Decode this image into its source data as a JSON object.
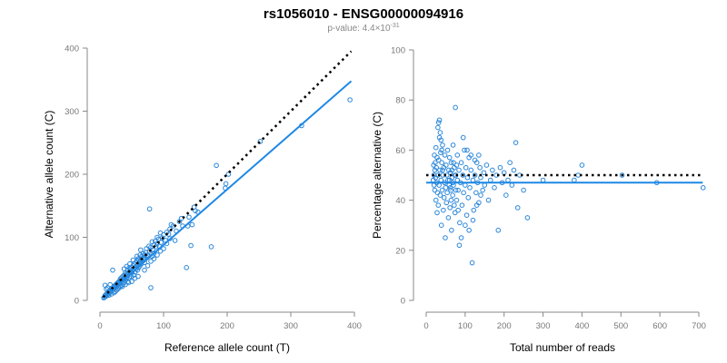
{
  "figure": {
    "title": "rs1056010 - ENSG00000094916",
    "pvalue_prefix": "p-value: 4.4×10",
    "pvalue_exponent": "-31"
  },
  "colors": {
    "points": "#2b87d9",
    "fit": "#1e88e5",
    "reference": "#000000"
  },
  "chart_data": [
    {
      "type": "scatter",
      "xlabel": "Reference allele count (T)",
      "ylabel": "Alternative allele count (C)",
      "xlim": [
        0,
        400
      ],
      "ylim": [
        0,
        400
      ],
      "xticks": [
        0,
        100,
        200,
        300,
        400
      ],
      "yticks": [
        0,
        100,
        200,
        300,
        400
      ],
      "fit_line": {
        "slope": 0.88,
        "intercept": 0,
        "x_range": [
          5,
          395
        ]
      },
      "reference_line": {
        "slope": 1.0,
        "intercept": 0,
        "x_range": [
          5,
          395
        ]
      },
      "points": [
        [
          393,
          318
        ],
        [
          317,
          277
        ],
        [
          252,
          252
        ],
        [
          202,
          200
        ],
        [
          198,
          185
        ],
        [
          197,
          178
        ],
        [
          183,
          214
        ],
        [
          175,
          85
        ],
        [
          154,
          140
        ],
        [
          150,
          142
        ],
        [
          148,
          148
        ],
        [
          145,
          120
        ],
        [
          143,
          87
        ],
        [
          138,
          118
        ],
        [
          136,
          52
        ],
        [
          128,
          130
        ],
        [
          125,
          125
        ],
        [
          118,
          95
        ],
        [
          115,
          118
        ],
        [
          112,
          120
        ],
        [
          110,
          113
        ],
        [
          108,
          105
        ],
        [
          105,
          108
        ],
        [
          103,
          95
        ],
        [
          100,
          104
        ],
        [
          98,
          99
        ],
        [
          96,
          92
        ],
        [
          95,
          107
        ],
        [
          93,
          86
        ],
        [
          92,
          97
        ],
        [
          90,
          100
        ],
        [
          90,
          90
        ],
        [
          88,
          85
        ],
        [
          87,
          94
        ],
        [
          85,
          75
        ],
        [
          85,
          88
        ],
        [
          83,
          80
        ],
        [
          82,
          93
        ],
        [
          82,
          70
        ],
        [
          80,
          84
        ],
        [
          80,
          20
        ],
        [
          78,
          78
        ],
        [
          78,
          145
        ],
        [
          77,
          86
        ],
        [
          76,
          70
        ],
        [
          75,
          72
        ],
        [
          74,
          68
        ],
        [
          73,
          82
        ],
        [
          72,
          76
        ],
        [
          71,
          65
        ],
        [
          70,
          72
        ],
        [
          70,
          60
        ],
        [
          69,
          68
        ],
        [
          68,
          74
        ],
        [
          67,
          62
        ],
        [
          66,
          70
        ],
        [
          65,
          58
        ],
        [
          65,
          66
        ],
        [
          64,
          64
        ],
        [
          63,
          55
        ],
        [
          63,
          72
        ],
        [
          62,
          60
        ],
        [
          61,
          52
        ],
        [
          60,
          66
        ],
        [
          60,
          58
        ],
        [
          59,
          48
        ],
        [
          58,
          62
        ],
        [
          58,
          55
        ],
        [
          57,
          50
        ],
        [
          56,
          60
        ],
        [
          55,
          52
        ],
        [
          55,
          45
        ],
        [
          54,
          58
        ],
        [
          53,
          50
        ],
        [
          53,
          40
        ],
        [
          52,
          55
        ],
        [
          51,
          47
        ],
        [
          50,
          52
        ],
        [
          50,
          44
        ],
        [
          49,
          38
        ],
        [
          48,
          50
        ],
        [
          48,
          42
        ],
        [
          47,
          46
        ],
        [
          46,
          36
        ],
        [
          46,
          52
        ],
        [
          45,
          44
        ],
        [
          44,
          40
        ],
        [
          44,
          30
        ],
        [
          43,
          47
        ],
        [
          42,
          42
        ],
        [
          42,
          35
        ],
        [
          41,
          38
        ],
        [
          40,
          44
        ],
        [
          40,
          32
        ],
        [
          39,
          36
        ],
        [
          38,
          40
        ],
        [
          38,
          28
        ],
        [
          37,
          34
        ],
        [
          36,
          38
        ],
        [
          36,
          26
        ],
        [
          35,
          32
        ],
        [
          34,
          36
        ],
        [
          34,
          24
        ],
        [
          33,
          30
        ],
        [
          32,
          34
        ],
        [
          32,
          22
        ],
        [
          31,
          28
        ],
        [
          30,
          30
        ],
        [
          30,
          20
        ],
        [
          29,
          26
        ],
        [
          28,
          28
        ],
        [
          28,
          18
        ],
        [
          27,
          24
        ],
        [
          26,
          26
        ],
        [
          26,
          16
        ],
        [
          25,
          22
        ],
        [
          24,
          24
        ],
        [
          24,
          14
        ],
        [
          23,
          20
        ],
        [
          22,
          22
        ],
        [
          22,
          12
        ],
        [
          21,
          18
        ],
        [
          20,
          20
        ],
        [
          20,
          48
        ],
        [
          19,
          16
        ],
        [
          18,
          18
        ],
        [
          18,
          10
        ],
        [
          17,
          14
        ],
        [
          16,
          16
        ],
        [
          16,
          25
        ],
        [
          15,
          12
        ],
        [
          14,
          14
        ],
        [
          14,
          8
        ],
        [
          13,
          10
        ],
        [
          12,
          12
        ],
        [
          12,
          20
        ],
        [
          11,
          8
        ],
        [
          10,
          10
        ],
        [
          10,
          18
        ],
        [
          9,
          6
        ],
        [
          8,
          8
        ],
        [
          8,
          24
        ],
        [
          7,
          5
        ],
        [
          6,
          4
        ],
        [
          64,
          80
        ],
        [
          58,
          70
        ],
        [
          52,
          64
        ],
        [
          47,
          58
        ],
        [
          42,
          54
        ],
        [
          38,
          50
        ],
        [
          70,
          48
        ],
        [
          75,
          55
        ],
        [
          80,
          62
        ],
        [
          85,
          66
        ],
        [
          90,
          72
        ],
        [
          95,
          78
        ],
        [
          100,
          82
        ],
        [
          105,
          90
        ],
        [
          110,
          98
        ],
        [
          120,
          110
        ],
        [
          130,
          118
        ],
        [
          140,
          132
        ],
        [
          60,
          38
        ],
        [
          55,
          35
        ],
        [
          50,
          30
        ],
        [
          45,
          28
        ],
        [
          40,
          25
        ],
        [
          35,
          22
        ]
      ]
    },
    {
      "type": "scatter",
      "xlabel": "Total number of reads",
      "ylabel": "Percentage alternative (C)",
      "xlim": [
        0,
        700
      ],
      "ylim": [
        0,
        100
      ],
      "xticks": [
        0,
        100,
        200,
        300,
        400,
        500,
        600,
        700
      ],
      "yticks": [
        0,
        20,
        40,
        60,
        80,
        100
      ],
      "fit_line": {
        "y": 47,
        "x_range": [
          0,
          710
        ]
      },
      "reference_line": {
        "y": 50,
        "x_range": [
          0,
          710
        ]
      },
      "points": [
        [
          711,
          45
        ],
        [
          592,
          47
        ],
        [
          503,
          50
        ],
        [
          400,
          54
        ],
        [
          390,
          50
        ],
        [
          380,
          48
        ],
        [
          300,
          48
        ],
        [
          260,
          33
        ],
        [
          250,
          44
        ],
        [
          240,
          50
        ],
        [
          235,
          37
        ],
        [
          230,
          63
        ],
        [
          225,
          52
        ],
        [
          220,
          46
        ],
        [
          215,
          55
        ],
        [
          210,
          48
        ],
        [
          205,
          42
        ],
        [
          200,
          51
        ],
        [
          195,
          47
        ],
        [
          190,
          53
        ],
        [
          185,
          28
        ],
        [
          180,
          50
        ],
        [
          175,
          45
        ],
        [
          170,
          52
        ],
        [
          165,
          48
        ],
        [
          160,
          40
        ],
        [
          155,
          54
        ],
        [
          150,
          46
        ],
        [
          148,
          51
        ],
        [
          145,
          44
        ],
        [
          140,
          49
        ],
        [
          138,
          53
        ],
        [
          135,
          39
        ],
        [
          132,
          47
        ],
        [
          130,
          55
        ],
        [
          128,
          43
        ],
        [
          125,
          50
        ],
        [
          122,
          36
        ],
        [
          120,
          48
        ],
        [
          118,
          15
        ],
        [
          115,
          52
        ],
        [
          112,
          45
        ],
        [
          110,
          57
        ],
        [
          108,
          41
        ],
        [
          106,
          49
        ],
        [
          104,
          34
        ],
        [
          102,
          53
        ],
        [
          100,
          46
        ],
        [
          98,
          60
        ],
        [
          96,
          43
        ],
        [
          94,
          50
        ],
        [
          92,
          38
        ],
        [
          90,
          55
        ],
        [
          88,
          47
        ],
        [
          86,
          31
        ],
        [
          84,
          52
        ],
        [
          82,
          44
        ],
        [
          80,
          58
        ],
        [
          78,
          40
        ],
        [
          76,
          50
        ],
        [
          75,
          77
        ],
        [
          74,
          35
        ],
        [
          72,
          53
        ],
        [
          70,
          46
        ],
        [
          69,
          62
        ],
        [
          68,
          42
        ],
        [
          66,
          49
        ],
        [
          65,
          28
        ],
        [
          64,
          55
        ],
        [
          63,
          44
        ],
        [
          62,
          51
        ],
        [
          61,
          37
        ],
        [
          60,
          57
        ],
        [
          59,
          46
        ],
        [
          58,
          52
        ],
        [
          57,
          33
        ],
        [
          56,
          48
        ],
        [
          55,
          60
        ],
        [
          54,
          43
        ],
        [
          53,
          50
        ],
        [
          52,
          39
        ],
        [
          51,
          54
        ],
        [
          50,
          45
        ],
        [
          49,
          25
        ],
        [
          48,
          58
        ],
        [
          47,
          47
        ],
        [
          46,
          41
        ],
        [
          45,
          53
        ],
        [
          44,
          36
        ],
        [
          43,
          50
        ],
        [
          42,
          62
        ],
        [
          41,
          44
        ],
        [
          40,
          55
        ],
        [
          39,
          30
        ],
        [
          38,
          48
        ],
        [
          37,
          59
        ],
        [
          36,
          42
        ],
        [
          35,
          52
        ],
        [
          34,
          65
        ],
        [
          33,
          46
        ],
        [
          32,
          56
        ],
        [
          31,
          38
        ],
        [
          30,
          69
        ],
        [
          30,
          50
        ],
        [
          29,
          43
        ],
        [
          28,
          57
        ],
        [
          28,
          35
        ],
        [
          27,
          47
        ],
        [
          26,
          53
        ],
        [
          25,
          61
        ],
        [
          25,
          40
        ],
        [
          24,
          49
        ],
        [
          23,
          55
        ],
        [
          22,
          44
        ],
        [
          22,
          52
        ],
        [
          21,
          58
        ],
        [
          20,
          46
        ],
        [
          20,
          50
        ],
        [
          19,
          54
        ],
        [
          18,
          48
        ],
        [
          85,
          22
        ],
        [
          90,
          25
        ],
        [
          95,
          65
        ],
        [
          100,
          30
        ],
        [
          105,
          60
        ],
        [
          110,
          28
        ],
        [
          115,
          58
        ],
        [
          120,
          32
        ],
        [
          125,
          56
        ],
        [
          130,
          38
        ],
        [
          135,
          58
        ],
        [
          140,
          42
        ],
        [
          32,
          71
        ],
        [
          34,
          72
        ],
        [
          36,
          67
        ],
        [
          38,
          64
        ],
        [
          40,
          60
        ],
        [
          42,
          52
        ],
        [
          60,
          48
        ],
        [
          62,
          45
        ],
        [
          64,
          40
        ],
        [
          66,
          52
        ],
        [
          68,
          47
        ],
        [
          70,
          55
        ],
        [
          72,
          38
        ],
        [
          74,
          50
        ],
        [
          76,
          44
        ],
        [
          78,
          54
        ],
        [
          80,
          48
        ],
        [
          82,
          36
        ]
      ]
    }
  ]
}
